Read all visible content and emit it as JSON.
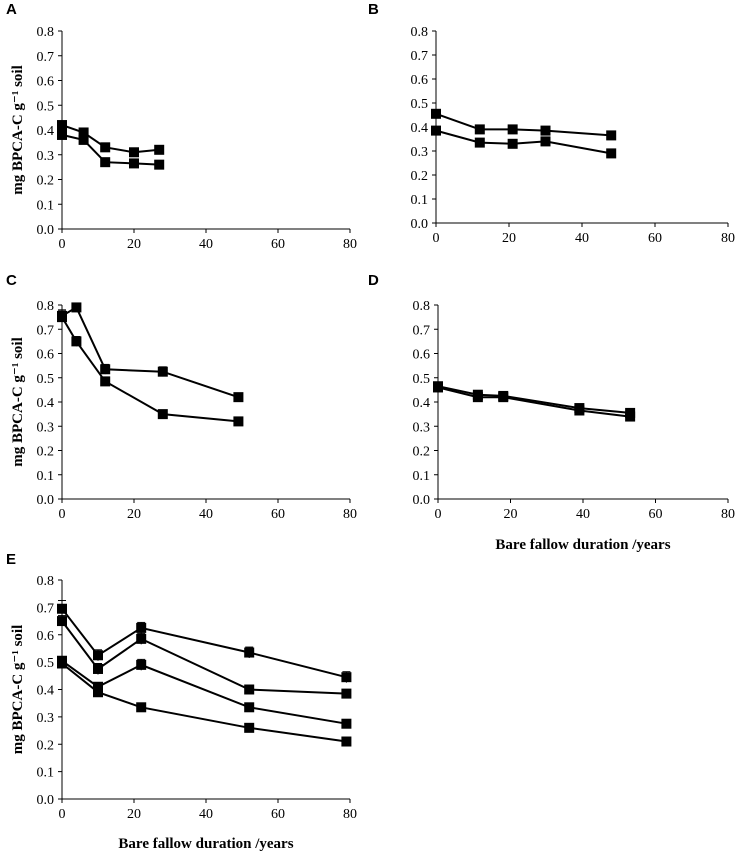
{
  "chart_data": [
    {
      "type": "line",
      "panel": "A",
      "xlabel": "",
      "ylabel": "mg BPCA-C g⁻¹ soil",
      "xlim": [
        0,
        80
      ],
      "ylim": [
        0,
        0.8
      ],
      "xticks": [
        "0",
        "20",
        "40",
        "60",
        "80"
      ],
      "yticks": [
        "0.0",
        "0.1",
        "0.2",
        "0.3",
        "0.4",
        "0.5",
        "0.6",
        "0.7",
        "0.8"
      ],
      "series": [
        {
          "name": "series-1",
          "x": [
            0,
            6,
            12,
            20,
            27
          ],
          "y": [
            0.42,
            0.39,
            0.33,
            0.31,
            0.32
          ]
        },
        {
          "name": "series-2",
          "x": [
            0,
            6,
            12,
            20,
            27
          ],
          "y": [
            0.38,
            0.36,
            0.27,
            0.265,
            0.26
          ]
        }
      ]
    },
    {
      "type": "line",
      "panel": "B",
      "xlabel": "",
      "ylabel": "",
      "xlim": [
        0,
        80
      ],
      "ylim": [
        0,
        0.8
      ],
      "xticks": [
        "0",
        "20",
        "40",
        "60",
        "80"
      ],
      "yticks": [
        "0.0",
        "0.1",
        "0.2",
        "0.3",
        "0.4",
        "0.5",
        "0.6",
        "0.7",
        "0.8"
      ],
      "series": [
        {
          "name": "series-1",
          "x": [
            0,
            12,
            21,
            30,
            48
          ],
          "y": [
            0.455,
            0.39,
            0.39,
            0.385,
            0.365
          ]
        },
        {
          "name": "series-2",
          "x": [
            0,
            12,
            21,
            30,
            48
          ],
          "y": [
            0.385,
            0.335,
            0.33,
            0.34,
            0.29
          ]
        }
      ]
    },
    {
      "type": "line",
      "panel": "C",
      "xlabel": "",
      "ylabel": "mg BPCA-C g⁻¹ soil",
      "xlim": [
        0,
        80
      ],
      "ylim": [
        0,
        0.8
      ],
      "xticks": [
        "0",
        "20",
        "40",
        "60",
        "80"
      ],
      "yticks": [
        "0.0",
        "0.1",
        "0.2",
        "0.3",
        "0.4",
        "0.5",
        "0.6",
        "0.7",
        "0.8"
      ],
      "series": [
        {
          "name": "series-1",
          "x": [
            0,
            4,
            12,
            28,
            49
          ],
          "y": [
            0.755,
            0.79,
            0.535,
            0.525,
            0.42
          ],
          "err": [
            0.02,
            0.01,
            0.02,
            0.02,
            0.01
          ]
        },
        {
          "name": "series-2",
          "x": [
            0,
            4,
            12,
            28,
            49
          ],
          "y": [
            0.75,
            0.65,
            0.485,
            0.35,
            0.32
          ],
          "err": [
            0.03,
            0.02,
            0.01,
            0.01,
            0.01
          ]
        }
      ]
    },
    {
      "type": "line",
      "panel": "D",
      "xlabel": "Bare fallow duration /years",
      "ylabel": "",
      "xlim": [
        0,
        80
      ],
      "ylim": [
        0,
        0.8
      ],
      "xticks": [
        "0",
        "20",
        "40",
        "60",
        "80"
      ],
      "yticks": [
        "0.0",
        "0.1",
        "0.2",
        "0.3",
        "0.4",
        "0.5",
        "0.6",
        "0.7",
        "0.8"
      ],
      "series": [
        {
          "name": "series-1",
          "x": [
            0,
            11,
            18,
            39,
            53
          ],
          "y": [
            0.465,
            0.43,
            0.425,
            0.375,
            0.355
          ]
        },
        {
          "name": "series-2",
          "x": [
            0,
            11,
            18,
            39,
            53
          ],
          "y": [
            0.46,
            0.42,
            0.42,
            0.365,
            0.34
          ]
        }
      ]
    },
    {
      "type": "line",
      "panel": "E",
      "xlabel": "Bare fallow duration /years",
      "ylabel": "mg BPCA-C g⁻¹ soil",
      "xlim": [
        0,
        80
      ],
      "ylim": [
        0,
        0.8
      ],
      "xticks": [
        "0",
        "20",
        "40",
        "60",
        "80"
      ],
      "yticks": [
        "0.0",
        "0.1",
        "0.2",
        "0.3",
        "0.4",
        "0.5",
        "0.6",
        "0.7",
        "0.8"
      ],
      "series": [
        {
          "name": "series-1",
          "x": [
            0,
            10,
            22,
            52,
            79
          ],
          "y": [
            0.695,
            0.525,
            0.625,
            0.535,
            0.445
          ],
          "err": [
            0.03,
            0.02,
            0.02,
            0.02,
            0.02
          ]
        },
        {
          "name": "series-2",
          "x": [
            0,
            10,
            22,
            52,
            79
          ],
          "y": [
            0.65,
            0.475,
            0.585,
            0.4,
            0.385
          ],
          "err": [
            0.02,
            0.02,
            0.02,
            0.01,
            0.01
          ]
        },
        {
          "name": "series-3",
          "x": [
            0,
            10,
            22,
            52,
            79
          ],
          "y": [
            0.505,
            0.41,
            0.49,
            0.335,
            0.275
          ],
          "err": [
            0.01,
            0.01,
            0.02,
            0.01,
            0.01
          ]
        },
        {
          "name": "series-4",
          "x": [
            0,
            10,
            22,
            52,
            79
          ],
          "y": [
            0.495,
            0.39,
            0.335,
            0.26,
            0.21
          ],
          "err": [
            0.01,
            0.01,
            0.01,
            0.01,
            0.01
          ]
        }
      ]
    }
  ]
}
